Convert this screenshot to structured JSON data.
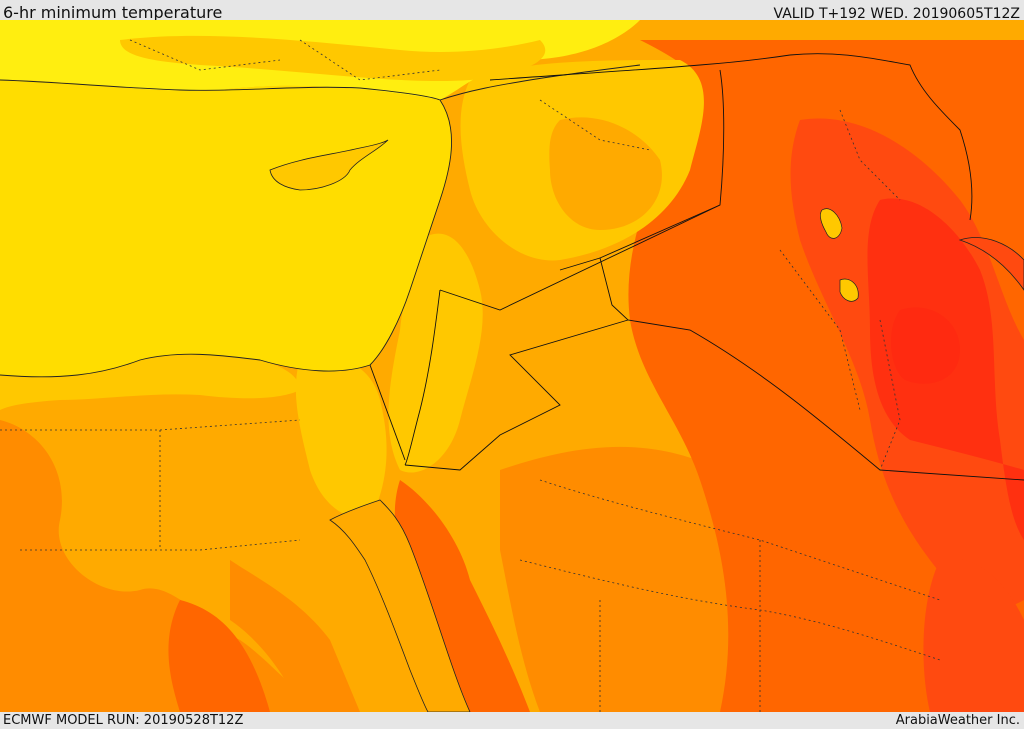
{
  "header": {
    "title": "6-hr minimum temperature",
    "valid_time": "VALID T+192 WED. 20190605T12Z"
  },
  "footer": {
    "model_run": "ECMWF MODEL RUN: 20190528T12Z",
    "credit": "ArabiaWeather Inc."
  },
  "map": {
    "field": "6-hr minimum temperature",
    "shading_colors": {
      "sea": "#ffdd00",
      "bright_yellow": "#ffee10",
      "yellow_orange": "#ffc800",
      "light_orange": "#ffaa00",
      "orange": "#ff8c00",
      "dark_orange": "#ff6600",
      "red_orange": "#ff4a10",
      "red": "#ff3010"
    },
    "icons": [
      "country-border-lines",
      "province-border-dotted-lines",
      "coastline"
    ]
  }
}
